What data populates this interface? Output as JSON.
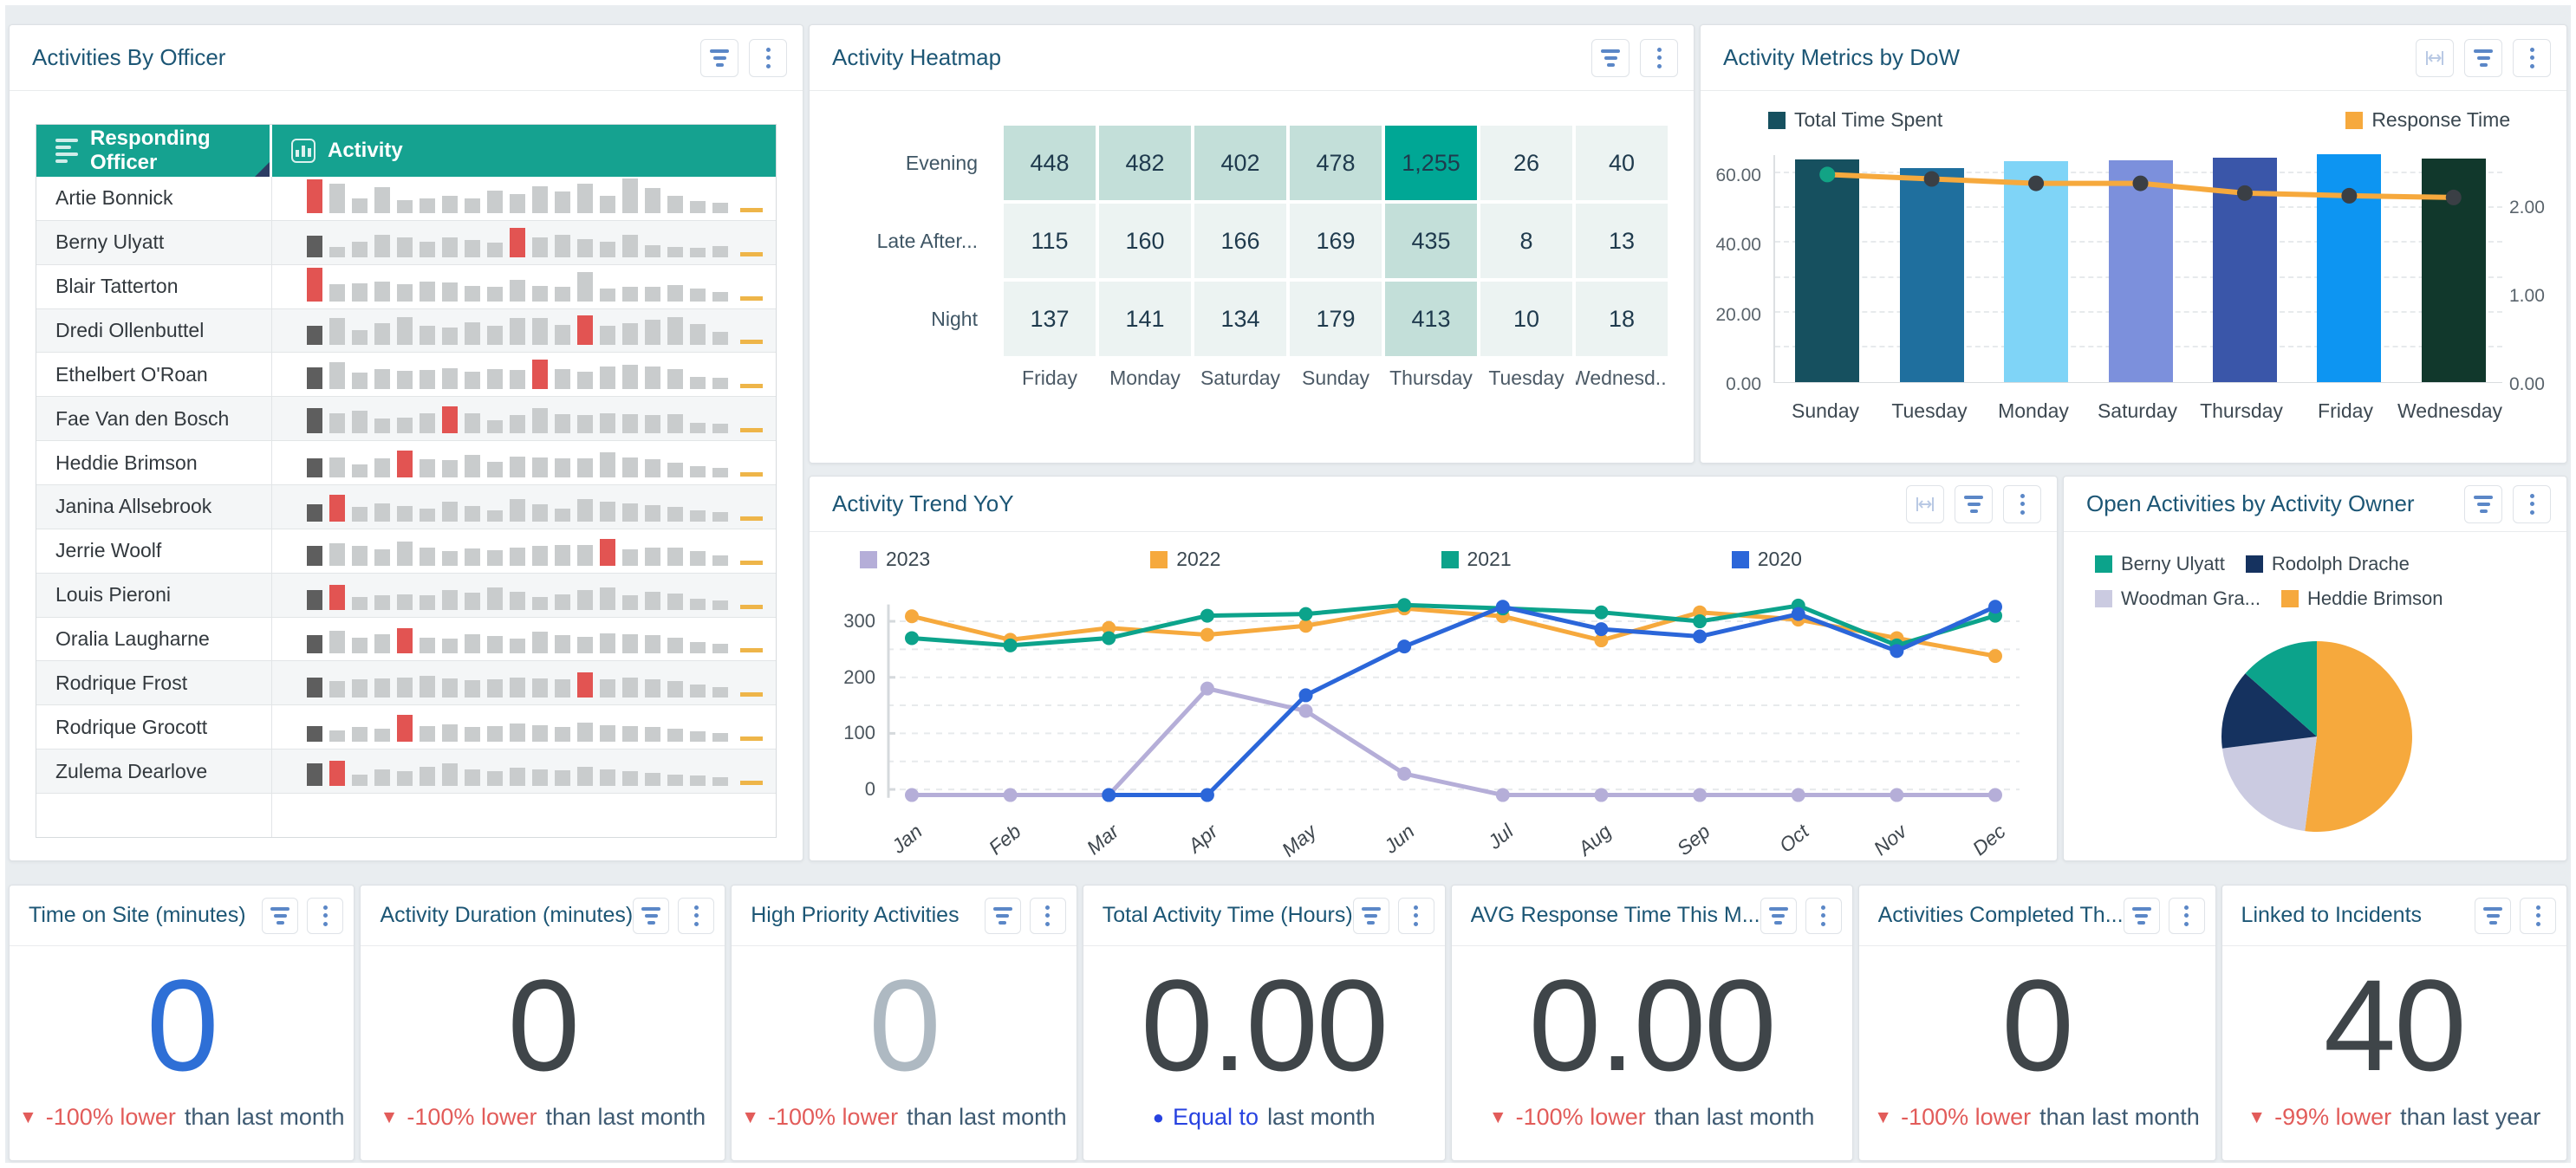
{
  "colors": {
    "accent_teal": "#15a290",
    "title_blue": "#1c5675",
    "icon_blue": "#5b87c7",
    "icon_blue_light": "#b9c9e4",
    "spark_gray": "#c9cccd",
    "spark_dark": "#5e5e5e",
    "spark_red": "#e25452",
    "spark_yellow": "#eeb549",
    "delta_red": "#e25c5a",
    "delta_blue": "#2742e0",
    "delta_rest": "#3e5a72"
  },
  "panels": {
    "officers": {
      "title": "Activities By Officer",
      "columns": [
        {
          "label": "Responding Officer",
          "icon": "align-left-icon"
        },
        {
          "label": "Activity",
          "icon": "bar-chart-icon"
        }
      ],
      "rows": [
        {
          "name": "Artie Bonnick",
          "red_index": 0,
          "bars": [
            70,
            62,
            30,
            55,
            28,
            30,
            36,
            30,
            48,
            40,
            56,
            46,
            62,
            36,
            72,
            52,
            36,
            26,
            22
          ]
        },
        {
          "name": "Berny Ulyatt",
          "red_index": 9,
          "bars": [
            46,
            22,
            32,
            48,
            42,
            32,
            42,
            36,
            30,
            62,
            42,
            48,
            38,
            32,
            48,
            26,
            22,
            20,
            24
          ]
        },
        {
          "name": "Blair Tatterton",
          "red_index": 0,
          "bars": [
            70,
            36,
            38,
            42,
            36,
            42,
            40,
            32,
            30,
            46,
            32,
            30,
            62,
            28,
            30,
            30,
            34,
            28,
            20
          ]
        },
        {
          "name": "Dredi Ollenbuttel",
          "red_index": 12,
          "bars": [
            40,
            56,
            30,
            46,
            58,
            40,
            36,
            48,
            40,
            56,
            56,
            42,
            62,
            40,
            46,
            52,
            58,
            44,
            28
          ]
        },
        {
          "name": "Ethelbert O'Roan",
          "red_index": 10,
          "bars": [
            46,
            56,
            34,
            42,
            38,
            40,
            44,
            36,
            42,
            40,
            62,
            42,
            36,
            48,
            50,
            48,
            42,
            26,
            24
          ]
        },
        {
          "name": "Fae Van den Bosch",
          "red_index": 6,
          "bars": [
            52,
            42,
            48,
            30,
            32,
            42,
            56,
            42,
            28,
            38,
            52,
            40,
            38,
            42,
            40,
            38,
            40,
            22,
            20
          ]
        },
        {
          "name": "Heddie Brimson",
          "red_index": 4,
          "bars": [
            40,
            42,
            28,
            40,
            56,
            38,
            36,
            48,
            32,
            44,
            42,
            40,
            40,
            52,
            42,
            38,
            30,
            24,
            20
          ]
        },
        {
          "name": "Janina Allsebrook",
          "red_index": 1,
          "bars": [
            36,
            56,
            30,
            38,
            32,
            28,
            42,
            32,
            24,
            48,
            36,
            28,
            48,
            42,
            38,
            34,
            30,
            24,
            20
          ]
        },
        {
          "name": "Jerrie Woolf",
          "red_index": 13,
          "bars": [
            42,
            48,
            42,
            34,
            50,
            38,
            30,
            36,
            32,
            38,
            42,
            44,
            44,
            56,
            34,
            38,
            38,
            30,
            22
          ]
        },
        {
          "name": "Louis Pieroni",
          "red_index": 1,
          "bars": [
            42,
            52,
            28,
            30,
            32,
            30,
            42,
            36,
            48,
            38,
            28,
            32,
            42,
            48,
            30,
            38,
            34,
            24,
            20
          ]
        },
        {
          "name": "Oralia Laugharne",
          "red_index": 4,
          "bars": [
            38,
            48,
            32,
            40,
            52,
            32,
            30,
            40,
            36,
            30,
            46,
            38,
            34,
            42,
            40,
            38,
            32,
            24,
            20
          ]
        },
        {
          "name": "Rodrique Frost",
          "red_index": 12,
          "bars": [
            42,
            34,
            38,
            40,
            42,
            46,
            40,
            36,
            38,
            42,
            40,
            38,
            52,
            38,
            42,
            38,
            34,
            28,
            22
          ]
        },
        {
          "name": "Rodrique Grocott",
          "red_index": 4,
          "bars": [
            32,
            24,
            30,
            28,
            56,
            32,
            36,
            30,
            32,
            38,
            34,
            30,
            40,
            34,
            32,
            30,
            28,
            22,
            18
          ]
        },
        {
          "name": "Zulema Dearlove",
          "red_index": 1,
          "bars": [
            48,
            52,
            24,
            34,
            30,
            40,
            48,
            34,
            30,
            38,
            34,
            32,
            40,
            34,
            30,
            28,
            24,
            22,
            18
          ]
        },
        {
          "name": "",
          "red_index": -1,
          "bars": []
        }
      ]
    },
    "heatmap": {
      "title": "Activity Heatmap"
    },
    "dow": {
      "title": "Activity Metrics by DoW"
    },
    "trend": {
      "title": "Activity Trend YoY"
    },
    "pie": {
      "title": "Open Activities by Activity Owner"
    }
  },
  "chart_data": [
    {
      "type": "heatmap",
      "title": "Activity Heatmap",
      "rows": [
        "Evening",
        "Late After...",
        "Night"
      ],
      "columns": [
        "Friday",
        "Monday",
        "Saturday",
        "Sunday",
        "Thursday",
        "Tuesday",
        "Wednesd..."
      ],
      "values": [
        [
          448,
          482,
          402,
          478,
          1255,
          26,
          40
        ],
        [
          115,
          160,
          166,
          169,
          435,
          8,
          13
        ],
        [
          137,
          141,
          134,
          179,
          413,
          10,
          18
        ]
      ],
      "display": [
        [
          "448",
          "482",
          "402",
          "478",
          "1,255",
          "26",
          "40"
        ],
        [
          "115",
          "160",
          "166",
          "169",
          "435",
          "8",
          "13"
        ],
        [
          "137",
          "141",
          "134",
          "179",
          "413",
          "10",
          "18"
        ]
      ],
      "color_scale": {
        "strong": "#00a795",
        "mid": "#c3dfd9",
        "light": "#ecf3f2"
      }
    },
    {
      "type": "bar",
      "title": "Activity Metrics by DoW",
      "categories": [
        "Sunday",
        "Tuesday",
        "Monday",
        "Saturday",
        "Thursday",
        "Friday",
        "Wednesday"
      ],
      "series": [
        {
          "name": "Total Time Spent",
          "type": "bar",
          "axis": "left",
          "values": [
            64,
            61.5,
            63.5,
            63.8,
            64.6,
            65.6,
            64.2
          ],
          "bar_colors": [
            "#16505f",
            "#1f6f9e",
            "#7fd4f7",
            "#7c90dc",
            "#3a56a9",
            "#0d95f2",
            "#11382c"
          ],
          "legend_color": "#16505f"
        },
        {
          "name": "Response Time",
          "type": "line",
          "axis": "right",
          "values": [
            2.38,
            2.33,
            2.28,
            2.28,
            2.17,
            2.14,
            2.12
          ],
          "color": "#f6a93d",
          "dot_color": "#3a3f45",
          "first_dot_color": "#12a385",
          "legend_color": "#f6a93d"
        }
      ],
      "left_axis": {
        "ticks": [
          "0.00",
          "20.00",
          "40.00",
          "60.00"
        ],
        "tick_values": [
          0,
          20,
          40,
          60
        ],
        "max": 66
      },
      "right_axis": {
        "ticks": [
          "0.00",
          "1.00",
          "2.00"
        ],
        "tick_values": [
          0,
          1,
          2
        ],
        "max": 2.6
      }
    },
    {
      "type": "line",
      "title": "Activity Trend YoY",
      "x": [
        "Jan",
        "Feb",
        "Mar",
        "Apr",
        "May",
        "Jun",
        "Jul",
        "Aug",
        "Sep",
        "Oct",
        "Nov",
        "Dec"
      ],
      "series": [
        {
          "name": "2023",
          "color": "#b5aed8",
          "values": [
            -10,
            -10,
            -10,
            180,
            140,
            28,
            -10,
            -10,
            -10,
            -10,
            -10,
            -10
          ]
        },
        {
          "name": "2022",
          "color": "#f6a93d",
          "values": [
            309,
            267,
            288,
            276,
            292,
            323,
            309,
            266,
            316,
            303,
            270,
            238
          ]
        },
        {
          "name": "2021",
          "color": "#0ca38b",
          "values": [
            270,
            257,
            270,
            310,
            313,
            329,
            323,
            316,
            300,
            328,
            257,
            310
          ]
        },
        {
          "name": "2020",
          "color": "#2b66d9",
          "values": [
            null,
            null,
            -10,
            -10,
            168,
            255,
            326,
            286,
            273,
            313,
            247,
            326
          ]
        }
      ],
      "ylim": [
        -20,
        348
      ],
      "yticks": [
        0,
        100,
        200,
        300
      ],
      "grid": "dashed"
    },
    {
      "type": "pie",
      "title": "Open Activities by Activity Owner",
      "slices": [
        {
          "label": "Berny Ulyatt",
          "color": "#0ca38b",
          "pct": 13.5
        },
        {
          "label": "Rodolph Drache",
          "color": "#15325f",
          "pct": 13.5
        },
        {
          "label": "Woodman Gra...",
          "color": "#cbcbe1",
          "pct": 21
        },
        {
          "label": "Heddie Brimson",
          "color": "#f6a93d",
          "pct": 52
        }
      ],
      "clockwise_draw_order": [
        3,
        2,
        1,
        0
      ]
    }
  ],
  "kpis": [
    {
      "title": "Time on Site (minutes)",
      "value": "0",
      "value_color": "#2e6fd6",
      "delta_kind": "down",
      "delta_text": "-100% lower",
      "delta_rest": "than last month"
    },
    {
      "title": "Activity Duration (minutes)",
      "value": "0",
      "value_color": "#3f4549",
      "delta_kind": "down",
      "delta_text": "-100% lower",
      "delta_rest": "than last month"
    },
    {
      "title": "High Priority Activities",
      "value": "0",
      "value_color": "#aeb9c2",
      "delta_kind": "down",
      "delta_text": "-100% lower",
      "delta_rest": "than last month"
    },
    {
      "title": "Total Activity Time (Hours)",
      "value": "0.00",
      "value_color": "#3f4549",
      "delta_kind": "equal",
      "delta_text": "Equal to",
      "delta_rest": "last month"
    },
    {
      "title": "AVG Response Time This M...",
      "value": "0.00",
      "value_color": "#3f4549",
      "delta_kind": "down",
      "delta_text": "-100% lower",
      "delta_rest": "than last month"
    },
    {
      "title": "Activities Completed Th...",
      "value": "0",
      "value_color": "#3f4549",
      "delta_kind": "down",
      "delta_text": "-100% lower",
      "delta_rest": "than last month"
    },
    {
      "title": "Linked to Incidents",
      "value": "40",
      "value_color": "#3f4549",
      "delta_kind": "down",
      "delta_text": "-99% lower",
      "delta_rest": "than last year"
    }
  ]
}
